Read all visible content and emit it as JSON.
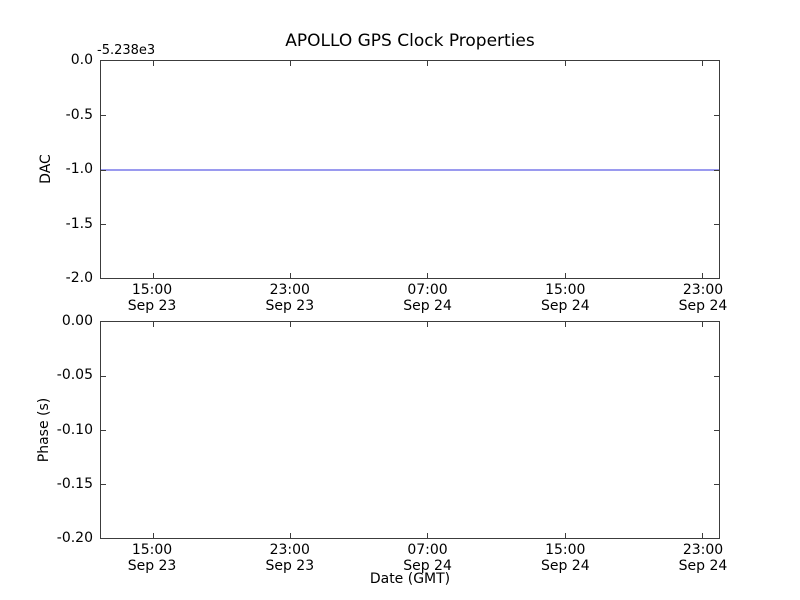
{
  "colors": {
    "line": "#9a9aef",
    "axis": "#3c3c3c",
    "text": "#000000",
    "background": "#ffffff"
  },
  "chart_data": [
    {
      "type": "line",
      "title": "APOLLO GPS Clock Properties",
      "ylabel": "DAC",
      "y_offset_text": "-5.238e3",
      "ylim": [
        -2.0,
        0.0
      ],
      "yticks": [
        "0.0",
        "-0.5",
        "-1.0",
        "-1.5",
        "-2.0"
      ],
      "xticks": [
        {
          "time": "15:00",
          "date": "Sep 23"
        },
        {
          "time": "23:00",
          "date": "Sep 23"
        },
        {
          "time": "07:00",
          "date": "Sep 24"
        },
        {
          "time": "15:00",
          "date": "Sep 24"
        },
        {
          "time": "23:00",
          "date": "Sep 24"
        }
      ],
      "grid": false,
      "legend": null,
      "series": [
        {
          "name": "DAC",
          "style": "horizontal line",
          "y": -1.0,
          "color": "#9a9aef"
        }
      ]
    },
    {
      "type": "line",
      "title": "",
      "ylabel": "Phase (s)",
      "xlabel": "Date (GMT)",
      "ylim": [
        -0.2,
        0.0
      ],
      "yticks": [
        "0.00",
        "-0.05",
        "-0.10",
        "-0.15",
        "-0.20"
      ],
      "xticks": [
        {
          "time": "15:00",
          "date": "Sep 23"
        },
        {
          "time": "23:00",
          "date": "Sep 23"
        },
        {
          "time": "07:00",
          "date": "Sep 24"
        },
        {
          "time": "15:00",
          "date": "Sep 24"
        },
        {
          "time": "23:00",
          "date": "Sep 24"
        }
      ],
      "grid": false,
      "legend": null,
      "series": []
    }
  ]
}
